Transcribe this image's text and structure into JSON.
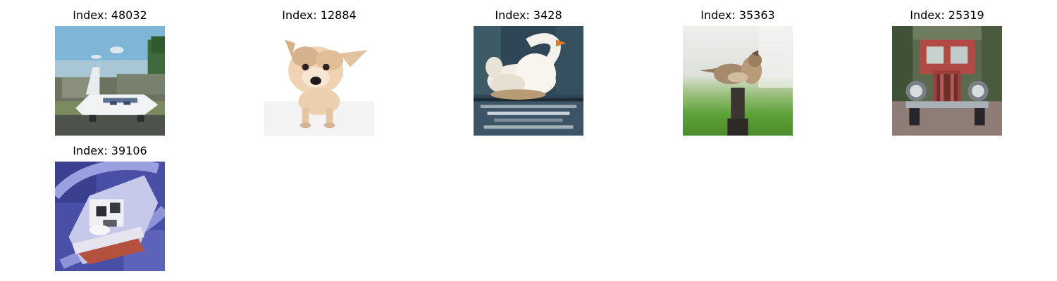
{
  "figure": {
    "images": [
      {
        "title": "Index: 48032",
        "subject": "airplane-photo"
      },
      {
        "title": "Index: 12884",
        "subject": "dog-photo"
      },
      {
        "title": "Index: 3428",
        "subject": "swan-photo"
      },
      {
        "title": "Index: 35363",
        "subject": "bird-photo"
      },
      {
        "title": "Index: 25319",
        "subject": "truck-photo"
      },
      {
        "title": "Index: 39106",
        "subject": "boat-photo"
      }
    ]
  }
}
